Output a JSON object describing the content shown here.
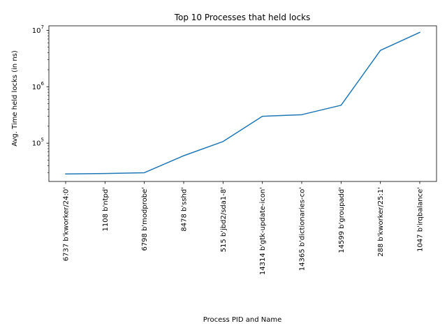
{
  "chart_data": {
    "type": "line",
    "title": "Top 10 Processes that held locks",
    "xlabel": "Process PID and Name",
    "ylabel": "Avg. Time held locks (in ns)",
    "yscale": "log",
    "ylim": [
      21000,
      12000000
    ],
    "categories": [
      "6737 b'kworker/24:0'",
      "1108 b'ntpd'",
      "6798 b'modprobe'",
      "8478 b'sshd'",
      "515 b'jbd2/sda1-8'",
      "14314 b'gtk-update-icon'",
      "14365 b'dictionaries-co'",
      "14599 b'groupadd'",
      "288 b'kworker/25:1'",
      "1047 b'irqbalance'"
    ],
    "values": [
      28500,
      29000,
      30000,
      60000,
      107000,
      300000,
      320000,
      470000,
      4400000,
      9200000
    ],
    "yticks": [
      {
        "base": "10",
        "exp": "5",
        "value": 100000
      },
      {
        "base": "10",
        "exp": "6",
        "value": 1000000
      },
      {
        "base": "10",
        "exp": "7",
        "value": 10000000
      }
    ],
    "grid": false,
    "legend": "none",
    "color": "#1f77b4"
  }
}
